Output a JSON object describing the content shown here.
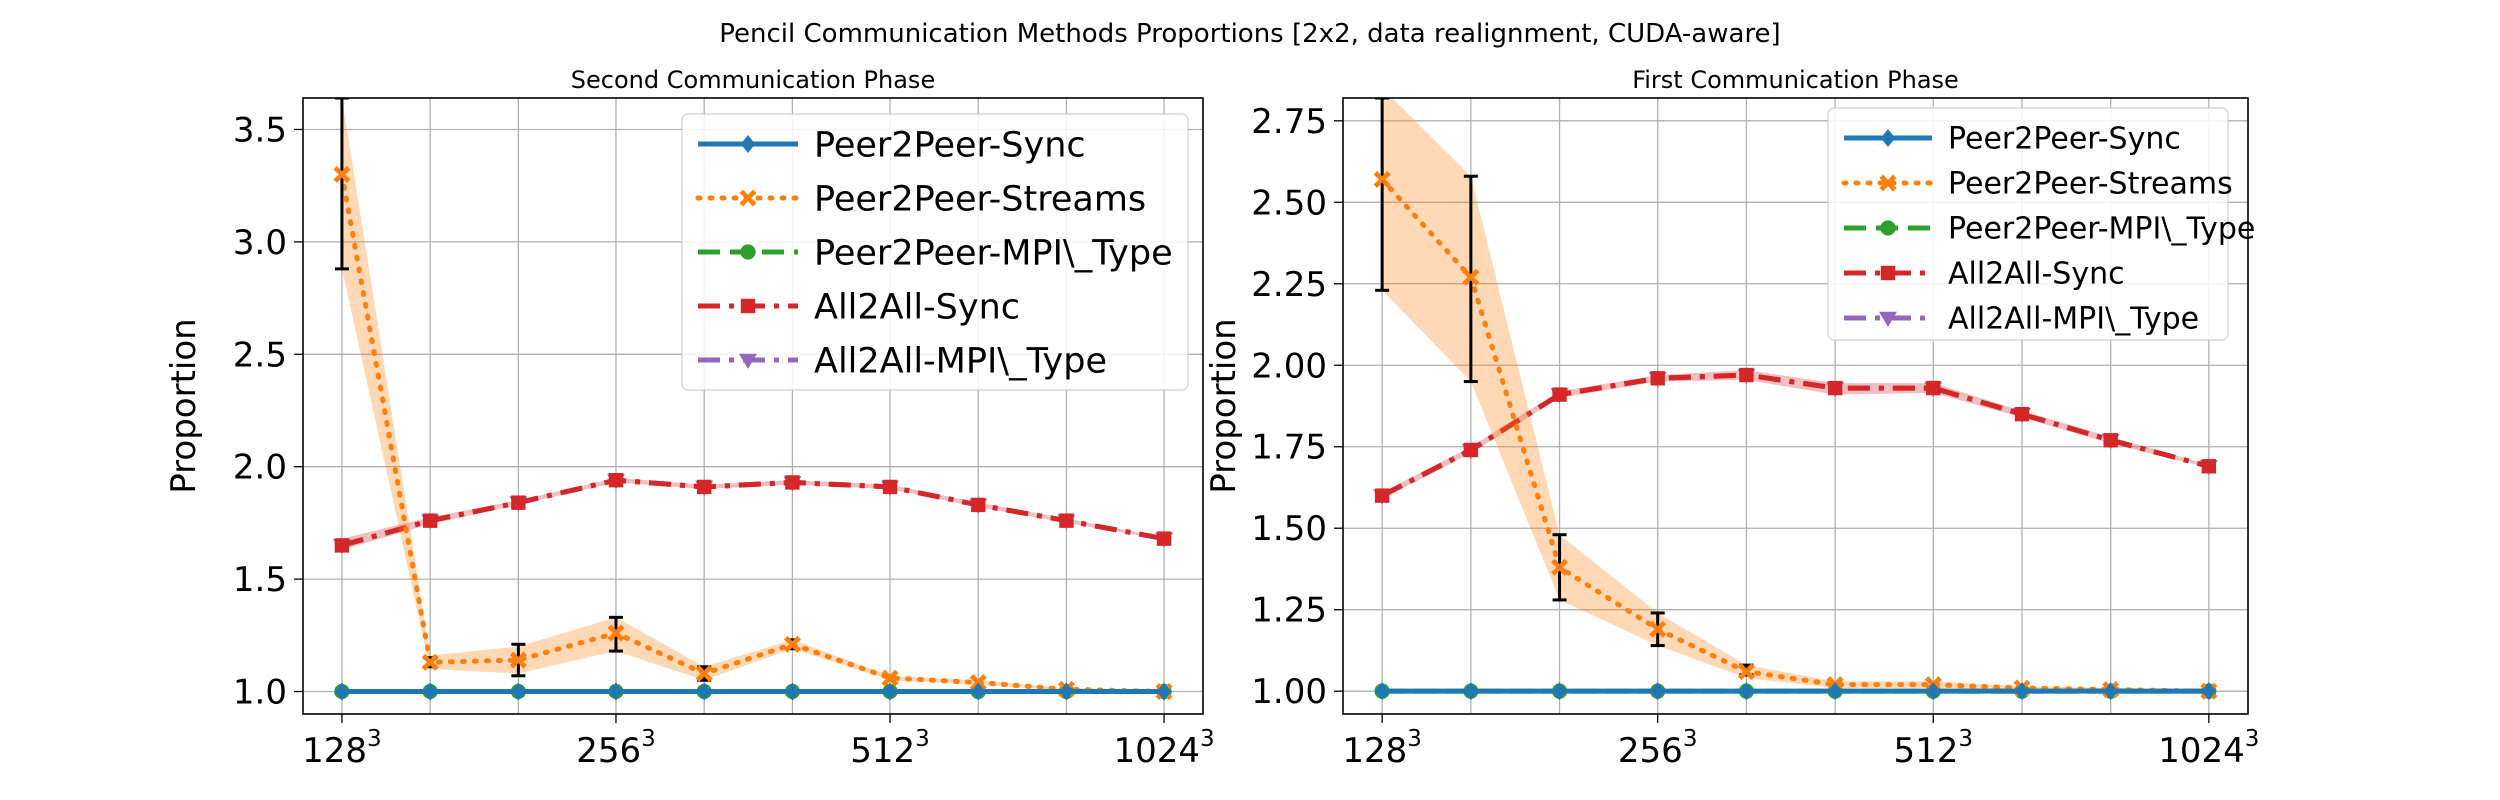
{
  "figure": {
    "suptitle": "Pencil Communication Methods Proportions [2x2, data realignment, CUDA-aware]"
  },
  "series_styles": {
    "Peer2Peer-Sync": {
      "color": "#1f77b4",
      "dash": "solid",
      "marker": "diamond"
    },
    "Peer2Peer-Streams": {
      "color": "#ff7f0e",
      "dash": "dotted",
      "marker": "x"
    },
    "Peer2Peer-MPI\\_Type": {
      "color": "#2ca02c",
      "dash": "dashed",
      "marker": "circle"
    },
    "All2All-Sync": {
      "color": "#d62728",
      "dash": "dashdot",
      "marker": "square"
    },
    "All2All-MPI\\_Type": {
      "color": "#9467bd",
      "dash": "dashdot",
      "marker": "triangle-down"
    }
  },
  "chart_data": [
    {
      "type": "line",
      "title": "Second Communication Phase",
      "xlabel": "",
      "ylabel": "Proportion",
      "x": [
        128,
        160,
        200,
        256,
        320,
        400,
        512,
        640,
        800,
        1024
      ],
      "x_scale": "log2",
      "xlim": [
        116,
        1130
      ],
      "xticks": [
        {
          "value": 128,
          "base": "128",
          "exp": "3"
        },
        {
          "value": 256,
          "base": "256",
          "exp": "3"
        },
        {
          "value": 512,
          "base": "512",
          "exp": "3"
        },
        {
          "value": 1024,
          "base": "1024",
          "exp": "3"
        }
      ],
      "ylim": [
        0.9,
        3.64
      ],
      "yticks": [
        "1.0",
        "1.5",
        "2.0",
        "2.5",
        "3.0",
        "3.5"
      ],
      "grid": true,
      "legend": {
        "placement": "upper-right",
        "size": "large",
        "entries": [
          "Peer2Peer-Sync",
          "Peer2Peer-Streams",
          "Peer2Peer-MPI\\_Type",
          "All2All-Sync",
          "All2All-MPI\\_Type"
        ]
      },
      "series": [
        {
          "name": "Peer2Peer-Sync",
          "values": [
            1.0,
            1.0,
            1.0,
            1.0,
            1.0,
            1.0,
            1.0,
            1.0,
            1.0,
            1.0
          ]
        },
        {
          "name": "Peer2Peer-Streams",
          "values": [
            3.3,
            1.13,
            1.14,
            1.26,
            1.08,
            1.21,
            1.06,
            1.04,
            1.01,
            1.0
          ],
          "band_lower": [
            2.88,
            1.1,
            1.08,
            1.18,
            1.05,
            1.19,
            1.05,
            1.03,
            1.005,
            0.995
          ],
          "band_upper": [
            3.64,
            1.16,
            1.2,
            1.33,
            1.11,
            1.23,
            1.07,
            1.05,
            1.015,
            1.005
          ],
          "error_low": [
            2.88,
            1.11,
            1.07,
            1.18,
            1.05,
            1.19,
            null,
            null,
            null,
            null
          ],
          "error_high": [
            3.64,
            1.15,
            1.21,
            1.33,
            1.11,
            1.23,
            null,
            null,
            null,
            null
          ]
        },
        {
          "name": "Peer2Peer-MPI\\_Type",
          "values": [
            1.0,
            1.0,
            1.0,
            1.0,
            1.0,
            1.0,
            1.0,
            1.0,
            1.0,
            1.0
          ]
        },
        {
          "name": "All2All-Sync",
          "values": [
            1.65,
            1.76,
            1.84,
            1.94,
            1.91,
            1.93,
            1.91,
            1.83,
            1.76,
            1.68
          ],
          "band_lower": [
            1.63,
            1.745,
            1.83,
            1.93,
            1.9,
            1.92,
            1.9,
            1.82,
            1.75,
            1.675
          ],
          "band_upper": [
            1.68,
            1.775,
            1.85,
            1.95,
            1.92,
            1.94,
            1.92,
            1.84,
            1.77,
            1.685
          ]
        },
        {
          "name": "All2All-MPI\\_Type",
          "values": [
            1.65,
            1.76,
            1.84,
            1.94,
            1.91,
            1.93,
            1.91,
            1.83,
            1.76,
            1.68
          ]
        }
      ]
    },
    {
      "type": "line",
      "title": "First Communication Phase",
      "xlabel": "",
      "ylabel": "Proportion",
      "x": [
        128,
        160,
        200,
        256,
        320,
        400,
        512,
        640,
        800,
        1024
      ],
      "x_scale": "log2",
      "xlim": [
        116,
        1130
      ],
      "xticks": [
        {
          "value": 128,
          "base": "128",
          "exp": "3"
        },
        {
          "value": 256,
          "base": "256",
          "exp": "3"
        },
        {
          "value": 512,
          "base": "512",
          "exp": "3"
        },
        {
          "value": 1024,
          "base": "1024",
          "exp": "3"
        }
      ],
      "ylim": [
        0.93,
        2.82
      ],
      "yticks": [
        "1.00",
        "1.25",
        "1.50",
        "1.75",
        "2.00",
        "2.25",
        "2.50",
        "2.75"
      ],
      "grid": true,
      "legend": {
        "placement": "upper-right",
        "size": "medium",
        "entries": [
          "Peer2Peer-Sync",
          "Peer2Peer-Streams",
          "Peer2Peer-MPI\\_Type",
          "All2All-Sync",
          "All2All-MPI\\_Type"
        ]
      },
      "series": [
        {
          "name": "Peer2Peer-Sync",
          "values": [
            1.0,
            1.0,
            1.0,
            1.0,
            1.0,
            1.0,
            1.0,
            1.0,
            1.0,
            1.0
          ]
        },
        {
          "name": "Peer2Peer-Streams",
          "values": [
            2.57,
            2.27,
            1.38,
            1.19,
            1.06,
            1.02,
            1.02,
            1.01,
            1.005,
            1.0
          ],
          "band_lower": [
            2.23,
            1.95,
            1.28,
            1.14,
            1.04,
            1.01,
            1.01,
            1.005,
            1.0,
            0.995
          ],
          "band_upper": [
            2.85,
            2.58,
            1.48,
            1.24,
            1.08,
            1.03,
            1.03,
            1.015,
            1.01,
            1.005
          ],
          "error_low": [
            2.23,
            1.95,
            1.28,
            1.14,
            1.05,
            null,
            null,
            null,
            null,
            null
          ],
          "error_high": [
            2.82,
            2.58,
            1.48,
            1.24,
            1.08,
            null,
            null,
            null,
            null,
            null
          ]
        },
        {
          "name": "Peer2Peer-MPI\\_Type",
          "values": [
            1.0,
            1.0,
            1.0,
            1.0,
            1.0,
            1.0,
            1.0,
            1.0,
            1.0,
            1.0
          ]
        },
        {
          "name": "All2All-Sync",
          "values": [
            1.6,
            1.74,
            1.91,
            1.96,
            1.97,
            1.93,
            1.93,
            1.85,
            1.77,
            1.69
          ],
          "band_lower": [
            1.59,
            1.73,
            1.9,
            1.95,
            1.955,
            1.91,
            1.915,
            1.84,
            1.76,
            1.685
          ],
          "band_upper": [
            1.61,
            1.75,
            1.92,
            1.97,
            1.985,
            1.945,
            1.945,
            1.86,
            1.78,
            1.695
          ]
        },
        {
          "name": "All2All-MPI\\_Type",
          "values": [
            1.6,
            1.74,
            1.91,
            1.96,
            1.97,
            1.93,
            1.93,
            1.85,
            1.77,
            1.69
          ]
        }
      ]
    }
  ]
}
